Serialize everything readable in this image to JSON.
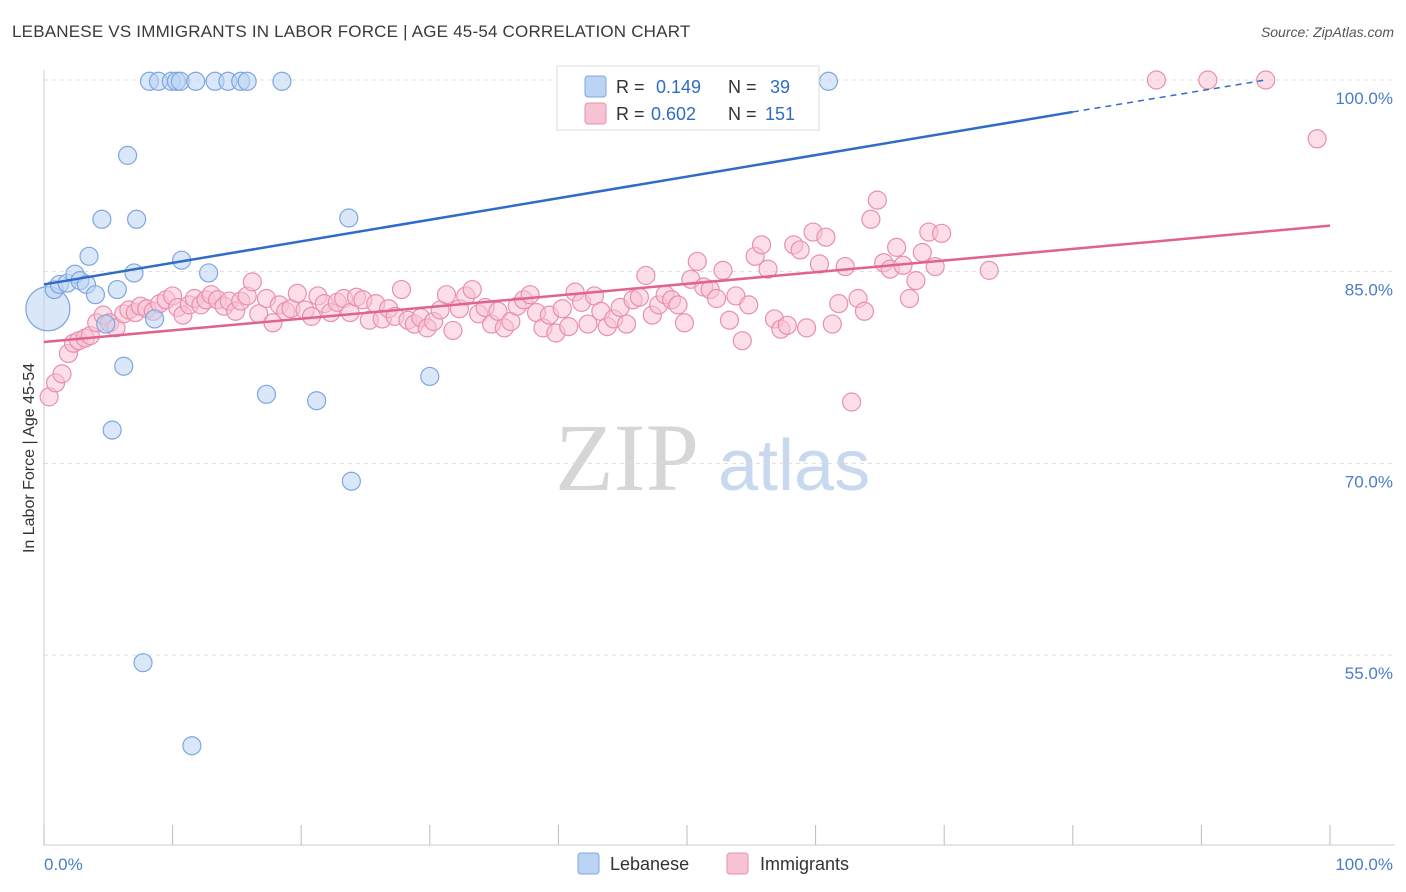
{
  "header": {
    "title": "LEBANESE VS IMMIGRANTS IN LABOR FORCE | AGE 45-54 CORRELATION CHART",
    "source": "Source: ZipAtlas.com"
  },
  "watermark": {
    "zip": "ZIP",
    "atlas": "atlas"
  },
  "colors": {
    "lebanese_fill": "#bcd4f4",
    "lebanese_stroke": "#7fa6df",
    "lebanese_line": "#2e6cc7",
    "immigrants_fill": "#f7c3d3",
    "immigrants_stroke": "#e98fae",
    "immigrants_line": "#e0628e",
    "grid": "#dddddd",
    "tick_label": "#4a7cc9"
  },
  "legend": {
    "rows": [
      {
        "r_label": "R =",
        "r_value": "0.149",
        "n_label": "N =",
        "n_value": "39"
      },
      {
        "r_label": "R =",
        "r_value": "0.602",
        "n_label": "N =",
        "n_value": "151"
      }
    ]
  },
  "chart_data": {
    "type": "scatter",
    "title": "LEBANESE VS IMMIGRANTS IN LABOR FORCE | AGE 45-54 CORRELATION CHART",
    "xlabel": "",
    "ylabel": "In Labor Force | Age 45-54",
    "xlim": [
      0,
      100
    ],
    "ylim": [
      40,
      101.5
    ],
    "x_tick_labels": [
      "0.0%",
      "100.0%"
    ],
    "y_ticks": [
      100,
      85,
      70,
      55
    ],
    "y_tick_labels": [
      "100.0%",
      "85.0%",
      "70.0%",
      "55.0%"
    ],
    "grid": true,
    "legend_position": "top-center",
    "series": [
      {
        "name": "Lebanese",
        "r": 0.149,
        "n": 39,
        "trend": {
          "x0": 0,
          "y0": 84.0,
          "x1": 80,
          "y1": 97.5,
          "dashed_to_x": 95,
          "dashed_to_y": 100.0
        },
        "points": [
          [
            0.3,
            82.1,
            22
          ],
          [
            0.8,
            83.6,
            9
          ],
          [
            1.2,
            84.0,
            9
          ],
          [
            1.8,
            84.1,
            9
          ],
          [
            2.4,
            84.8,
            9
          ],
          [
            2.8,
            84.3,
            9
          ],
          [
            3.3,
            84.0,
            9
          ],
          [
            3.5,
            86.2,
            9
          ],
          [
            4.0,
            83.2,
            9
          ],
          [
            4.5,
            89.1,
            9
          ],
          [
            4.8,
            80.9,
            9
          ],
          [
            5.3,
            72.6,
            9
          ],
          [
            5.7,
            83.6,
            9
          ],
          [
            6.2,
            77.6,
            9
          ],
          [
            6.5,
            94.1,
            9
          ],
          [
            7.0,
            84.9,
            9
          ],
          [
            7.2,
            89.1,
            9
          ],
          [
            7.7,
            54.4,
            9
          ],
          [
            8.2,
            99.9,
            9
          ],
          [
            8.6,
            81.3,
            9
          ],
          [
            8.9,
            99.9,
            9
          ],
          [
            9.9,
            99.9,
            9
          ],
          [
            10.3,
            99.9,
            9
          ],
          [
            10.6,
            99.9,
            9
          ],
          [
            10.7,
            85.9,
            9
          ],
          [
            11.5,
            47.9,
            9
          ],
          [
            11.8,
            99.9,
            9
          ],
          [
            12.8,
            84.9,
            9
          ],
          [
            13.3,
            99.9,
            9
          ],
          [
            14.3,
            99.9,
            9
          ],
          [
            15.3,
            99.9,
            9
          ],
          [
            15.8,
            99.9,
            9
          ],
          [
            17.3,
            75.4,
            9
          ],
          [
            18.5,
            99.9,
            9
          ],
          [
            21.2,
            74.9,
            9
          ],
          [
            23.7,
            89.2,
            9
          ],
          [
            23.9,
            68.6,
            9
          ],
          [
            30.0,
            76.8,
            9
          ],
          [
            61.0,
            99.9,
            9
          ]
        ]
      },
      {
        "name": "Immigrants",
        "r": 0.602,
        "n": 151,
        "trend": {
          "x0": 0,
          "y0": 79.5,
          "x1": 100,
          "y1": 88.6
        },
        "points": [
          [
            0.4,
            75.2
          ],
          [
            0.9,
            76.3
          ],
          [
            1.4,
            77.0
          ],
          [
            1.9,
            78.6
          ],
          [
            2.3,
            79.4
          ],
          [
            2.7,
            79.6
          ],
          [
            3.2,
            79.8
          ],
          [
            3.6,
            80.0
          ],
          [
            4.1,
            81.0
          ],
          [
            4.6,
            81.6
          ],
          [
            5.1,
            81.0
          ],
          [
            5.6,
            80.6
          ],
          [
            6.2,
            81.7
          ],
          [
            6.6,
            82.0
          ],
          [
            7.1,
            81.8
          ],
          [
            7.5,
            82.3
          ],
          [
            8.0,
            82.1
          ],
          [
            8.5,
            81.9
          ],
          [
            9.0,
            82.5
          ],
          [
            9.5,
            82.8
          ],
          [
            10.0,
            83.1
          ],
          [
            10.4,
            82.2
          ],
          [
            10.8,
            81.6
          ],
          [
            11.3,
            82.4
          ],
          [
            11.7,
            82.9
          ],
          [
            12.2,
            82.4
          ],
          [
            12.6,
            82.8
          ],
          [
            13.0,
            83.2
          ],
          [
            13.5,
            82.8
          ],
          [
            14.0,
            82.3
          ],
          [
            14.4,
            82.7
          ],
          [
            14.9,
            81.9
          ],
          [
            15.3,
            82.7
          ],
          [
            15.8,
            83.1
          ],
          [
            16.2,
            84.2
          ],
          [
            16.7,
            81.7
          ],
          [
            17.3,
            82.9
          ],
          [
            17.8,
            81.0
          ],
          [
            18.3,
            82.4
          ],
          [
            18.8,
            81.9
          ],
          [
            19.2,
            82.1
          ],
          [
            19.7,
            83.3
          ],
          [
            20.3,
            82.0
          ],
          [
            20.8,
            81.5
          ],
          [
            21.3,
            83.1
          ],
          [
            21.8,
            82.5
          ],
          [
            22.3,
            81.8
          ],
          [
            22.8,
            82.6
          ],
          [
            23.3,
            82.9
          ],
          [
            23.8,
            81.8
          ],
          [
            24.3,
            83.0
          ],
          [
            24.8,
            82.8
          ],
          [
            25.3,
            81.2
          ],
          [
            25.8,
            82.5
          ],
          [
            26.3,
            81.3
          ],
          [
            26.8,
            82.1
          ],
          [
            27.3,
            81.5
          ],
          [
            27.8,
            83.6
          ],
          [
            28.3,
            81.2
          ],
          [
            28.8,
            80.9
          ],
          [
            29.3,
            81.4
          ],
          [
            29.8,
            80.6
          ],
          [
            30.3,
            81.1
          ],
          [
            30.8,
            82.0
          ],
          [
            31.3,
            83.2
          ],
          [
            31.8,
            80.4
          ],
          [
            32.3,
            82.1
          ],
          [
            32.8,
            83.1
          ],
          [
            33.3,
            83.6
          ],
          [
            33.8,
            81.7
          ],
          [
            34.3,
            82.2
          ],
          [
            34.8,
            80.9
          ],
          [
            35.3,
            81.9
          ],
          [
            35.8,
            80.6
          ],
          [
            36.3,
            81.1
          ],
          [
            36.8,
            82.3
          ],
          [
            37.3,
            82.8
          ],
          [
            37.8,
            83.2
          ],
          [
            38.3,
            81.8
          ],
          [
            38.8,
            80.6
          ],
          [
            39.3,
            81.6
          ],
          [
            39.8,
            80.2
          ],
          [
            40.3,
            82.1
          ],
          [
            40.8,
            80.7
          ],
          [
            41.3,
            83.4
          ],
          [
            41.8,
            82.6
          ],
          [
            42.3,
            80.9
          ],
          [
            42.8,
            83.1
          ],
          [
            43.3,
            81.9
          ],
          [
            43.8,
            80.7
          ],
          [
            44.3,
            81.3
          ],
          [
            44.8,
            82.2
          ],
          [
            45.3,
            80.9
          ],
          [
            45.8,
            82.8
          ],
          [
            46.3,
            83.0
          ],
          [
            46.8,
            84.7
          ],
          [
            47.3,
            81.6
          ],
          [
            47.8,
            82.4
          ],
          [
            48.3,
            83.2
          ],
          [
            48.8,
            82.8
          ],
          [
            49.3,
            82.4
          ],
          [
            49.8,
            81.0
          ],
          [
            50.3,
            84.4
          ],
          [
            50.8,
            85.8
          ],
          [
            51.3,
            83.8
          ],
          [
            51.8,
            83.6
          ],
          [
            52.3,
            82.9
          ],
          [
            52.8,
            85.1
          ],
          [
            53.3,
            81.2
          ],
          [
            53.8,
            83.1
          ],
          [
            54.3,
            79.6
          ],
          [
            54.8,
            82.4
          ],
          [
            55.3,
            86.2
          ],
          [
            55.8,
            87.1
          ],
          [
            56.3,
            85.2
          ],
          [
            56.8,
            81.3
          ],
          [
            57.3,
            80.5
          ],
          [
            57.8,
            80.8
          ],
          [
            58.3,
            87.1
          ],
          [
            58.8,
            86.7
          ],
          [
            59.3,
            80.6
          ],
          [
            59.8,
            88.1
          ],
          [
            60.3,
            85.6
          ],
          [
            60.8,
            87.7
          ],
          [
            61.3,
            80.9
          ],
          [
            61.8,
            82.5
          ],
          [
            62.3,
            85.4
          ],
          [
            62.8,
            74.8
          ],
          [
            63.3,
            82.9
          ],
          [
            63.8,
            81.9
          ],
          [
            64.3,
            89.1
          ],
          [
            64.8,
            90.6
          ],
          [
            65.3,
            85.7
          ],
          [
            65.8,
            85.2
          ],
          [
            66.3,
            86.9
          ],
          [
            66.8,
            85.5
          ],
          [
            67.3,
            82.9
          ],
          [
            67.8,
            84.3
          ],
          [
            68.3,
            86.5
          ],
          [
            68.8,
            88.1
          ],
          [
            69.3,
            85.4
          ],
          [
            69.8,
            88.0
          ],
          [
            73.5,
            85.1
          ],
          [
            86.5,
            100.0
          ],
          [
            90.5,
            100.0
          ],
          [
            95.0,
            100.0
          ],
          [
            99.0,
            95.4
          ]
        ]
      }
    ]
  }
}
